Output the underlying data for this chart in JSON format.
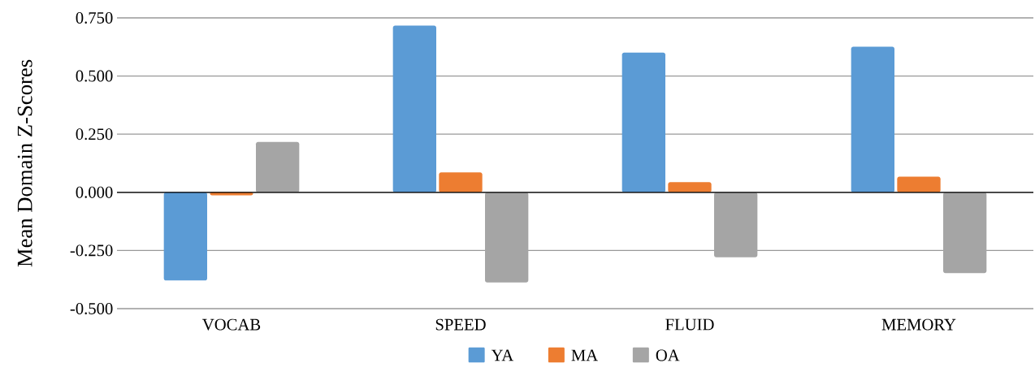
{
  "chart_data": {
    "type": "bar",
    "ylabel": "Mean Domain Z-Scores",
    "categories": [
      "VOCAB",
      "SPEED",
      "FLUID",
      "MEMORY"
    ],
    "series": [
      {
        "name": "YA",
        "color": "#5b9bd5",
        "values": [
          -0.379,
          0.717,
          0.601,
          0.626
        ]
      },
      {
        "name": "MA",
        "color": "#ed7d31",
        "values": [
          -0.013,
          0.086,
          0.044,
          0.067
        ]
      },
      {
        "name": "OA",
        "color": "#a5a5a5",
        "values": [
          0.217,
          -0.387,
          -0.279,
          -0.347
        ]
      }
    ],
    "ylim": [
      -0.5,
      0.75
    ],
    "yticks": [
      {
        "value": -0.5,
        "label": "-0.500"
      },
      {
        "value": -0.25,
        "label": "-0.250"
      },
      {
        "value": 0,
        "label": "0.000"
      },
      {
        "value": 0.25,
        "label": "0.250"
      },
      {
        "value": 0.5,
        "label": "0.500"
      },
      {
        "value": 0.75,
        "label": "0.750"
      }
    ],
    "grid": "y",
    "legend": "bottom"
  }
}
